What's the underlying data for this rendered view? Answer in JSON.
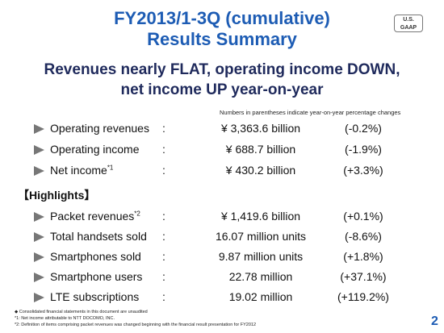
{
  "header": {
    "title_lines": [
      "FY2013/1-3Q (cumulative)",
      "Results Summary"
    ],
    "badge": [
      "U.S.",
      "GAAP"
    ]
  },
  "subtitle_lines": [
    "Revenues nearly FLAT, operating income DOWN,",
    "net income UP year-on-year"
  ],
  "note": "Numbers in parentheses indicate year-on-year percentage changes",
  "separator": ":",
  "rows": [
    {
      "label": "Operating revenues",
      "value": "¥ 3,363.6 billion",
      "change": "(-0.2%)"
    },
    {
      "label": "Operating income",
      "value": "¥ 688.7 billion",
      "change": "(-1.9%)"
    },
    {
      "label": "Net income",
      "superscript": "*1",
      "value": "¥ 430.2 billion",
      "change": "(+3.3%)"
    }
  ],
  "highlights_heading": "【Highlights】",
  "highlight_rows": [
    {
      "label": "Packet revenues",
      "superscript": "*2",
      "value": "¥ 1,419.6 billion",
      "change": "(+0.1%)"
    },
    {
      "label": "Total handsets sold",
      "value": "16.07 million units",
      "change": "(-8.6%)"
    },
    {
      "label": "Smartphones sold",
      "value": "9.87 million units",
      "change": "(+1.8%)"
    },
    {
      "label": "Smartphone users",
      "value": "22.78 million",
      "change": "(+37.1%)"
    },
    {
      "label": "LTE subscriptions",
      "value": "19.02 million",
      "change": "(+119.2%)"
    }
  ],
  "footnotes": [
    "◆ Consolidated financial statements in this document are unaudited",
    "*1: Net income attributable to NTT DOCOMO, INC.",
    "*2: Definition of items comprising packet revenues was changed beginning with the financial result presentation for FY2012"
  ],
  "page_number": "2"
}
